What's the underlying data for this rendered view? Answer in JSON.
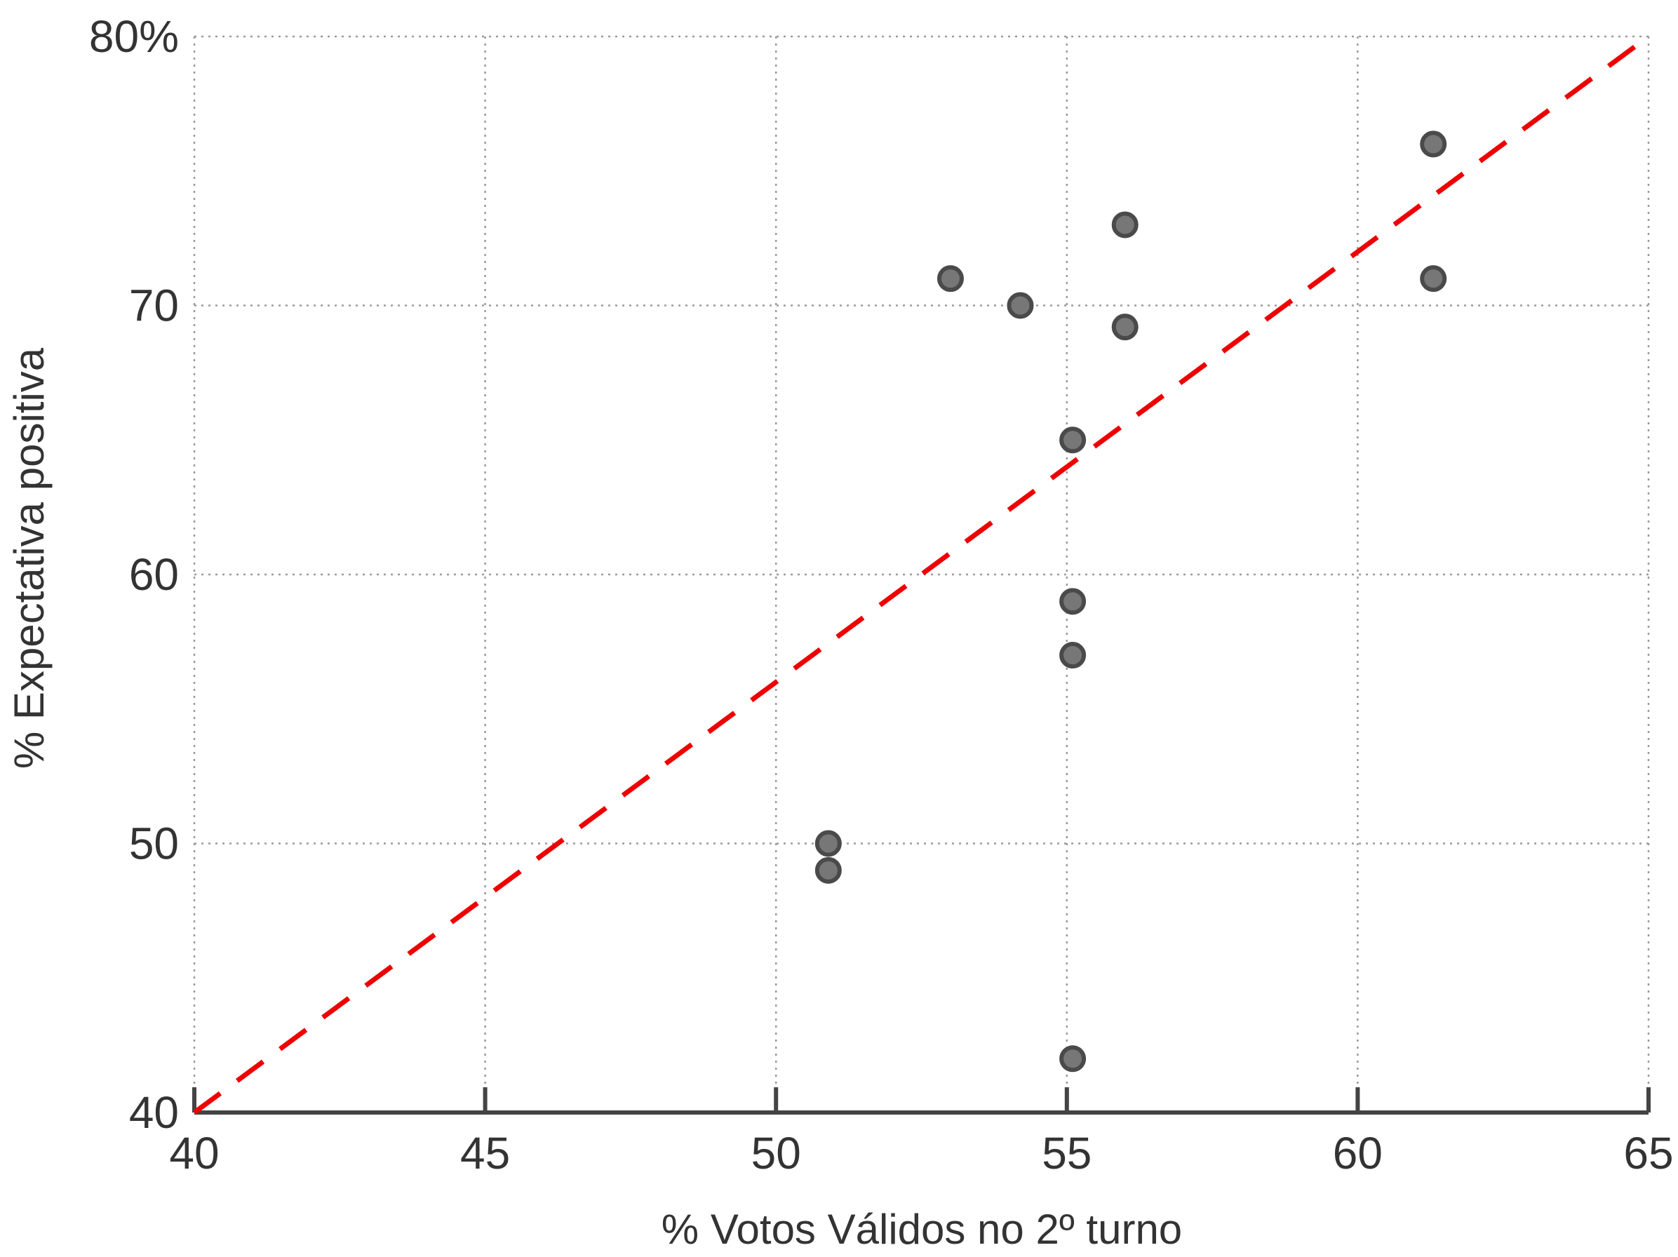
{
  "chart_data": {
    "type": "scatter",
    "xlabel": "% Votos Válidos no 2º turno",
    "ylabel": "% Expectativa positiva",
    "xlim": [
      40,
      65
    ],
    "ylim": [
      40,
      80
    ],
    "x_ticks": [
      40,
      45,
      50,
      55,
      60,
      65
    ],
    "x_tick_labels": [
      "40",
      "45",
      "50",
      "55",
      "60",
      "65"
    ],
    "y_ticks": [
      40,
      50,
      60,
      70,
      80
    ],
    "y_tick_labels": [
      "40",
      "50",
      "60",
      "70",
      "80%"
    ],
    "grid": true,
    "points": [
      {
        "x": 50.9,
        "y": 50.0
      },
      {
        "x": 50.9,
        "y": 49.0
      },
      {
        "x": 53.0,
        "y": 71.0
      },
      {
        "x": 54.2,
        "y": 70.0
      },
      {
        "x": 55.1,
        "y": 65.0
      },
      {
        "x": 55.1,
        "y": 59.0
      },
      {
        "x": 55.1,
        "y": 57.0
      },
      {
        "x": 55.1,
        "y": 42.0
      },
      {
        "x": 56.0,
        "y": 73.0
      },
      {
        "x": 56.0,
        "y": 69.2
      },
      {
        "x": 61.3,
        "y": 76.0
      },
      {
        "x": 61.3,
        "y": 71.0
      }
    ],
    "reference_line": {
      "x": [
        40,
        65
      ],
      "y": [
        40,
        80
      ],
      "style": "dashed",
      "color": "#ee0000"
    },
    "colors": {
      "points": "#777777",
      "point_edge": "#4a4a4a",
      "reference_line": "#ee0000"
    }
  }
}
